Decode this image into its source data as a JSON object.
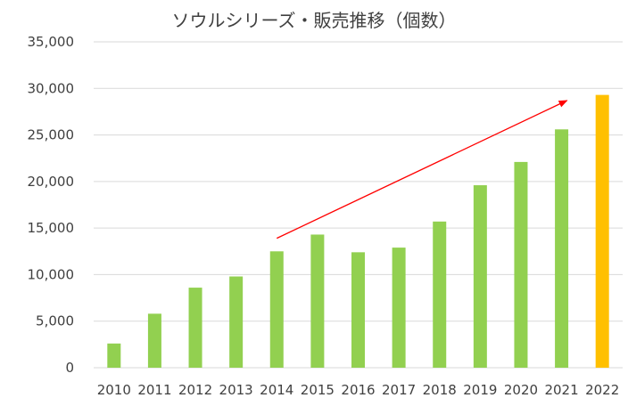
{
  "chart_data": {
    "type": "bar",
    "title": "ソウルシリーズ・販売推移（個数）",
    "xlabel": "",
    "ylabel": "",
    "categories": [
      "2010",
      "2011",
      "2012",
      "2013",
      "2014",
      "2015",
      "2016",
      "2017",
      "2018",
      "2019",
      "2020",
      "2021",
      "2022"
    ],
    "values": [
      2600,
      5800,
      8600,
      9800,
      12500,
      14300,
      12400,
      12900,
      15700,
      19600,
      22100,
      25600,
      29300
    ],
    "ylim": [
      0,
      35000
    ],
    "yticks": [
      0,
      5000,
      10000,
      15000,
      20000,
      25000,
      30000,
      35000
    ],
    "ytick_labels": [
      "0",
      "5,000",
      "10,000",
      "15,000",
      "20,000",
      "25,000",
      "30,000",
      "35,000"
    ],
    "grid": true,
    "legend": "none",
    "colors": {
      "bar": "#92d050",
      "highlight": "#ffc000",
      "arrow": "#ff0000",
      "text": "#404040",
      "grid": "#d9d9d9"
    },
    "highlight_category": "2022",
    "annotations": [
      {
        "type": "arrow",
        "from": {
          "x": "2014",
          "y": 13900
        },
        "to": {
          "x": "2021",
          "y": 28700
        }
      }
    ]
  }
}
